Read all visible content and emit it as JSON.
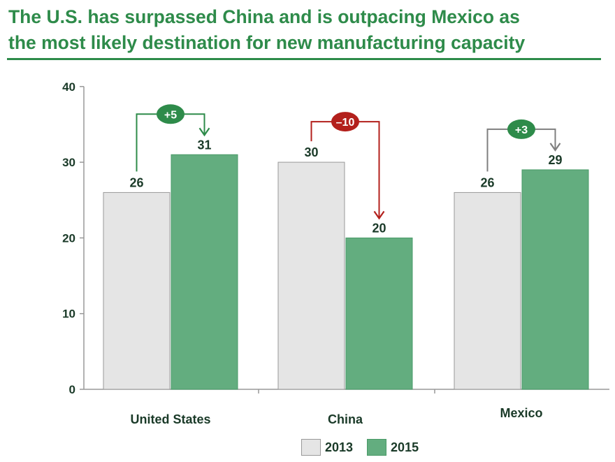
{
  "title": {
    "line1": "The U.S. has surpassed China and is outpacing Mexico as",
    "line2": "the most likely destination for new manufacturing capacity"
  },
  "colors": {
    "title": "#2e8b4a",
    "bar_2013": "#e5e5e5",
    "bar_2013_stroke": "#999999",
    "bar_2015": "#63ad7f",
    "positive_badge": "#2e8b4a",
    "negative_badge": "#b3201c",
    "mexico_arrow": "#7f7f7f",
    "text_dark": "#1a3a28"
  },
  "chart_data": {
    "type": "bar",
    "title": "The U.S. has surpassed China and is outpacing Mexico as the most likely destination for new manufacturing capacity",
    "categories": [
      "United States",
      "China",
      "Mexico"
    ],
    "series": [
      {
        "name": "2013",
        "values": [
          26,
          30,
          26
        ]
      },
      {
        "name": "2015",
        "values": [
          31,
          20,
          29
        ]
      }
    ],
    "changes": [
      "+5",
      "–10",
      "+3"
    ],
    "change_colors": [
      "#2e8b4a",
      "#b3201c",
      "#2e8b4a"
    ],
    "arrow_colors": [
      "#2e8b4a",
      "#b3201c",
      "#7f7f7f"
    ],
    "xlabel": "",
    "ylabel": "",
    "ylim": [
      0,
      40
    ],
    "yticks": [
      "0",
      "10",
      "20",
      "30",
      "40"
    ],
    "grid": false,
    "legend_position": "bottom"
  },
  "legend": {
    "label_2013": "2013",
    "label_2015": "2015"
  }
}
